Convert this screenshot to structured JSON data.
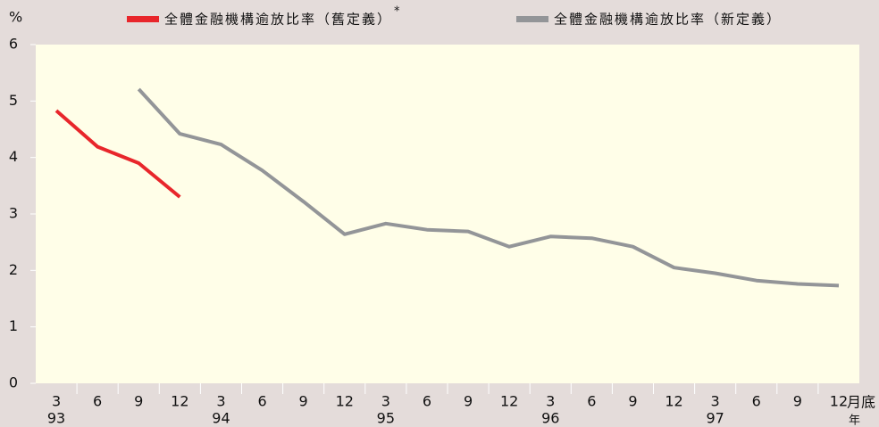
{
  "chart_data": {
    "type": "line",
    "y_unit": "%",
    "x_unit_month": "月底",
    "x_unit_year": "年",
    "categories": [
      "3",
      "6",
      "9",
      "12",
      "3",
      "6",
      "9",
      "12",
      "3",
      "6",
      "9",
      "12",
      "3",
      "6",
      "9",
      "12",
      "3",
      "6",
      "9",
      "12"
    ],
    "years": [
      "93",
      "94",
      "95",
      "96",
      "97"
    ],
    "legend_note": "*",
    "series": [
      {
        "name": "全體金融機構逾放比率（舊定義）",
        "color": "#e8262b",
        "values": [
          4.83,
          4.19,
          3.9,
          3.3,
          null,
          null,
          null,
          null,
          null,
          null,
          null,
          null,
          null,
          null,
          null,
          null,
          null,
          null,
          null,
          null
        ]
      },
      {
        "name": "全體金融機構逾放比率（新定義）",
        "color": "#939598",
        "values": [
          null,
          null,
          5.21,
          4.42,
          4.23,
          3.77,
          3.22,
          2.64,
          2.83,
          2.72,
          2.69,
          2.42,
          2.6,
          2.57,
          2.42,
          2.05,
          1.95,
          1.82,
          1.76,
          1.73
        ]
      }
    ],
    "ylim": [
      0,
      6
    ],
    "yticks": [
      0,
      1,
      2,
      3,
      4,
      5,
      6
    ],
    "grid": false
  }
}
